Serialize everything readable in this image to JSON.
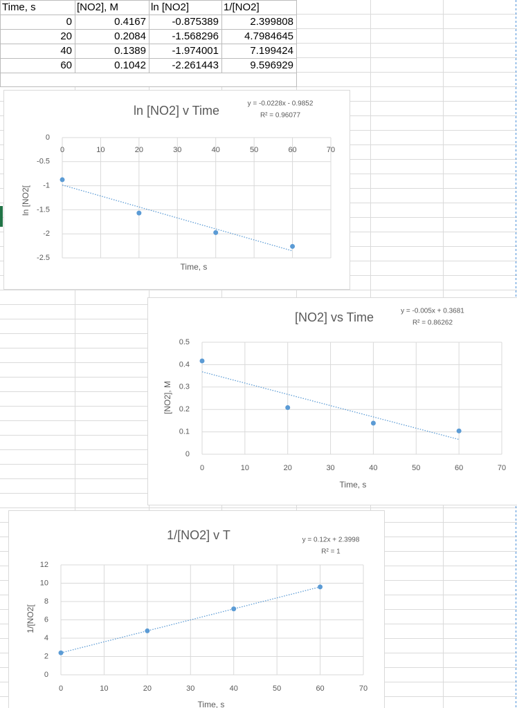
{
  "table": {
    "header": [
      "Time, s",
      "[NO2], M",
      "ln [NO2]",
      "1/[NO2]"
    ],
    "rows": [
      [
        0,
        0.4167,
        -0.875389,
        2.399808
      ],
      [
        20,
        0.2084,
        -1.568296,
        4.7984645
      ],
      [
        40,
        0.1389,
        -1.974001,
        7.199424
      ],
      [
        60,
        0.1042,
        -2.261443,
        9.596929
      ]
    ]
  },
  "chart_data": [
    {
      "type": "scatter",
      "title": "ln [NO2] v Time",
      "equation": "y = -0.0228x - 0.9852",
      "r_squared": "R² = 0.96077",
      "x_label": "Time, s",
      "y_label": "ln [NO2[",
      "x": [
        0,
        20,
        40,
        60
      ],
      "values": [
        -0.875389,
        -1.568296,
        -1.974001,
        -2.261443
      ],
      "color": "#5b9bd5",
      "trendline": "linear",
      "xlim": [
        0,
        70
      ],
      "xticks": [
        0,
        10,
        20,
        30,
        40,
        50,
        60,
        70
      ],
      "ylim": [
        -2.5,
        0
      ],
      "yticks": [
        0,
        -0.5,
        -1,
        -1.5,
        -2,
        -2.5
      ],
      "grid": true
    },
    {
      "type": "scatter",
      "title": "[NO2] vs Time",
      "equation": "y = -0.005x + 0.3681",
      "r_squared": "R² = 0.86262",
      "x_label": "Time, s",
      "y_label": "[NO2], M",
      "x": [
        0,
        20,
        40,
        60
      ],
      "values": [
        0.4167,
        0.2084,
        0.1389,
        0.1042
      ],
      "color": "#5b9bd5",
      "trendline": "linear",
      "xlim": [
        0,
        70
      ],
      "xticks": [
        0,
        10,
        20,
        30,
        40,
        50,
        60,
        70
      ],
      "ylim": [
        0,
        0.5
      ],
      "yticks": [
        0,
        0.1,
        0.2,
        0.3,
        0.4,
        0.5
      ],
      "grid": true
    },
    {
      "type": "scatter",
      "title": "1/[NO2] v T",
      "equation": "y = 0.12x + 2.3998",
      "r_squared": "R² = 1",
      "x_label": "Time, s",
      "y_label": "1/[NO2[",
      "x": [
        0,
        20,
        40,
        60
      ],
      "values": [
        2.399808,
        4.7984645,
        7.199424,
        9.596929
      ],
      "color": "#5b9bd5",
      "trendline": "linear",
      "xlim": [
        0,
        70
      ],
      "xticks": [
        0,
        10,
        20,
        30,
        40,
        50,
        60,
        70
      ],
      "ylim": [
        0,
        12
      ],
      "yticks": [
        0,
        2,
        4,
        6,
        8,
        10,
        12
      ],
      "grid": true
    }
  ]
}
